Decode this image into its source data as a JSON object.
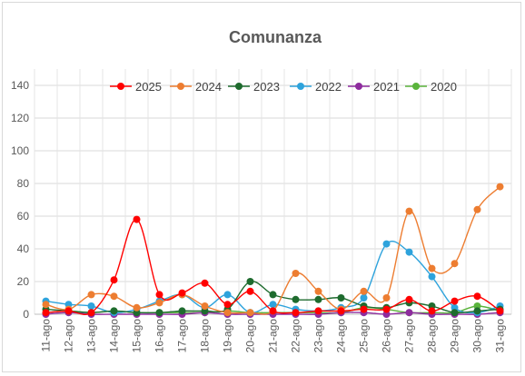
{
  "chart_data": {
    "type": "line",
    "title": "Comunanza",
    "xlabel": "",
    "ylabel": "",
    "ylim": [
      0,
      150
    ],
    "yticks": [
      0,
      20,
      40,
      60,
      80,
      100,
      120,
      140
    ],
    "grid": "horizontal",
    "legend_position": "top",
    "smooth": true,
    "categories": [
      "11-ago",
      "12-ago",
      "13-ago",
      "14-ago",
      "15-ago",
      "16-ago",
      "17-ago",
      "18-ago",
      "19-ago",
      "20-ago",
      "21-ago",
      "22-ago",
      "23-ago",
      "24-ago",
      "25-ago",
      "26-ago",
      "27-ago",
      "28-ago",
      "29-ago",
      "30-ago",
      "31-ago"
    ],
    "series": [
      {
        "name": "2025",
        "color": "#ff0000",
        "values": [
          1,
          2,
          1,
          21,
          58,
          12,
          13,
          19,
          6,
          14,
          2,
          1,
          2,
          2,
          3,
          3,
          9,
          2,
          8,
          11,
          2
        ]
      },
      {
        "name": "2024",
        "color": "#ed7d31",
        "values": [
          6,
          3,
          12,
          11,
          4,
          7,
          12,
          5,
          1,
          1,
          2,
          25,
          14,
          3,
          14,
          10,
          63,
          28,
          31,
          64,
          78
        ]
      },
      {
        "name": "2023",
        "color": "#1e6b2e",
        "values": [
          3,
          2,
          1,
          2,
          1,
          1,
          2,
          2,
          3,
          20,
          12,
          9,
          9,
          10,
          5,
          4,
          7,
          5,
          1,
          2,
          3
        ]
      },
      {
        "name": "2022",
        "color": "#2ea3dc",
        "values": [
          8,
          6,
          5,
          1,
          3,
          8,
          12,
          4,
          12,
          1,
          6,
          3,
          2,
          4,
          10,
          43,
          38,
          23,
          4,
          1,
          5
        ]
      },
      {
        "name": "2021",
        "color": "#8e2c9e",
        "values": [
          0,
          1,
          0,
          0,
          0,
          0,
          0,
          1,
          0,
          0,
          0,
          0,
          0,
          1,
          1,
          0,
          1,
          0,
          0,
          0,
          1
        ]
      },
      {
        "name": "2020",
        "color": "#5ab43c",
        "values": [
          1,
          2,
          1,
          2,
          1,
          1,
          1,
          1,
          2,
          1,
          1,
          1,
          1,
          1,
          4,
          3,
          1,
          1,
          1,
          5,
          2
        ]
      }
    ]
  }
}
